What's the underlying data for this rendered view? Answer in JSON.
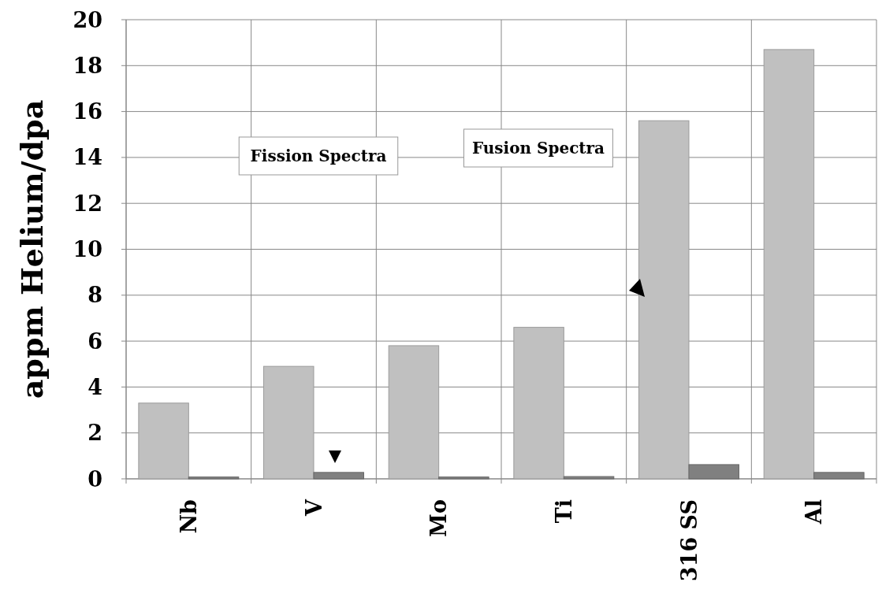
{
  "chart_data": {
    "type": "bar",
    "ylabel": "appm Helium/dpa",
    "categories": [
      "Nb",
      "V",
      "Mo",
      "Ti",
      "316 SS",
      "Al"
    ],
    "series": [
      {
        "color": "#c0c0c0",
        "values": [
          3.3,
          4.9,
          5.8,
          6.6,
          15.6,
          18.7
        ]
      },
      {
        "color": "#808080",
        "values": [
          0.08,
          0.28,
          0.08,
          0.1,
          0.62,
          0.28
        ]
      }
    ],
    "ylim": [
      0,
      20
    ],
    "yticks": [
      0,
      2,
      4,
      6,
      8,
      10,
      12,
      14,
      16,
      18,
      20
    ],
    "grid": true,
    "annotations": [
      "Fission Spectra",
      "Fusion Spectra"
    ]
  }
}
